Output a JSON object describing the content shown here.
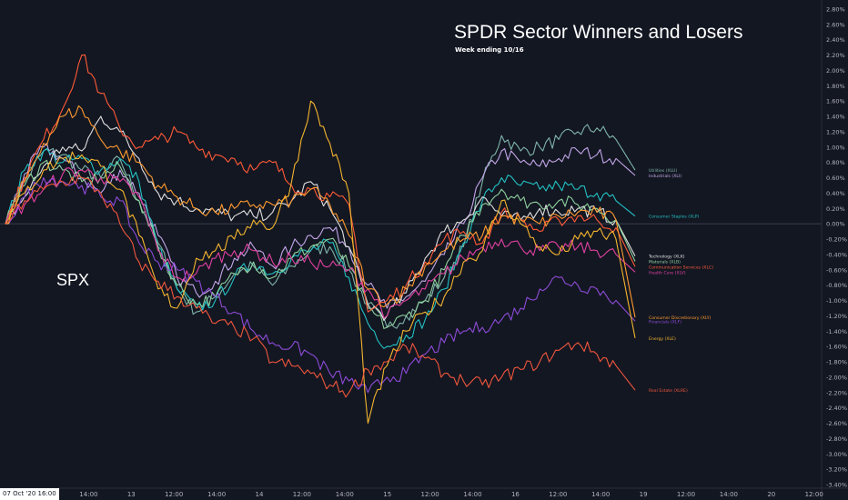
{
  "header": {
    "title": "SPDR Sector Winners and Losers",
    "subtitle": "Week ending 10/16",
    "index_label": "SPX",
    "crosshair_date": "07 Oct '20   16:00"
  },
  "colors": {
    "background": "#131722",
    "axis_text": "#b2b5be",
    "grid_zero": "#4a4e5a"
  },
  "chart_data": {
    "type": "line",
    "ylabel_unit": "%",
    "ylim": [
      -3.4,
      3.0
    ],
    "y_ticks": [
      "2.80%",
      "2.60%",
      "2.40%",
      "2.20%",
      "2.00%",
      "1.80%",
      "1.60%",
      "1.40%",
      "1.20%",
      "1.00%",
      "0.80%",
      "0.60%",
      "0.40%",
      "0.20%",
      "0.00%",
      "-0.20%",
      "-0.40%",
      "-0.60%",
      "-0.80%",
      "-1.00%",
      "-1.20%",
      "-1.40%",
      "-1.60%",
      "-1.80%",
      "-2.00%",
      "-2.20%",
      "-2.40%",
      "-2.60%",
      "-2.80%",
      "-3.00%",
      "-3.20%",
      "-3.40%"
    ],
    "x_ticks": [
      "00",
      "14:00",
      "13",
      "12:00",
      "14:00",
      "14",
      "12:00",
      "14:00",
      "15",
      "12:00",
      "14:00",
      "16",
      "12:00",
      "14:00",
      "19",
      "12:00",
      "14:00",
      "20",
      "12:00"
    ],
    "series": [
      {
        "name": "Utilities (XLU)",
        "color": "#7fb4a8",
        "end": 0.7,
        "values": [
          0.0,
          0.55,
          0.95,
          0.9,
          0.7,
          0.6,
          0.85,
          0.3,
          -0.25,
          -0.85,
          -1.15,
          -0.95,
          -0.65,
          -0.55,
          -0.8,
          -0.55,
          -0.35,
          -0.3,
          -0.6,
          -1.05,
          -1.35,
          -1.2,
          -1.0,
          -0.7,
          -0.3,
          0.55,
          1.15,
          0.95,
          1.0,
          1.1,
          1.2,
          1.25,
          1.1,
          0.7
        ]
      },
      {
        "name": "Industrials (XLI)",
        "color": "#c3a6e8",
        "end": 0.63,
        "values": [
          0.0,
          0.65,
          1.0,
          0.85,
          0.6,
          0.4,
          0.7,
          0.4,
          -0.15,
          -0.7,
          -0.9,
          -0.75,
          -0.45,
          -0.3,
          -0.55,
          -0.3,
          -0.15,
          -0.05,
          -0.3,
          -0.8,
          -1.1,
          -0.95,
          -0.75,
          -0.4,
          0.0,
          0.6,
          0.95,
          0.8,
          0.75,
          0.85,
          0.95,
          0.9,
          0.85,
          0.63
        ]
      },
      {
        "name": "Consumer Staples (XLP)",
        "color": "#22c1c3",
        "end": 0.1,
        "values": [
          0.0,
          0.7,
          0.95,
          0.8,
          0.85,
          0.7,
          0.85,
          0.55,
          -0.3,
          -0.85,
          -1.1,
          -1.0,
          -0.7,
          -0.5,
          -0.65,
          -0.45,
          -0.35,
          -0.25,
          -0.7,
          -1.3,
          -1.6,
          -1.45,
          -1.25,
          -0.85,
          -0.25,
          0.3,
          0.6,
          0.5,
          0.45,
          0.5,
          0.45,
          0.4,
          0.3,
          0.1
        ]
      },
      {
        "name": "Technology (XLK)",
        "color": "#e0e0e0",
        "end": -0.42,
        "values": [
          0.0,
          0.35,
          0.75,
          1.0,
          0.95,
          1.4,
          1.2,
          0.85,
          0.4,
          0.3,
          0.2,
          0.15,
          0.1,
          0.1,
          0.15,
          0.3,
          0.55,
          0.2,
          -0.3,
          -1.05,
          -1.2,
          -0.9,
          -0.45,
          -0.1,
          0.05,
          0.35,
          0.1,
          0.05,
          0.2,
          0.15,
          0.2,
          0.15,
          0.05,
          -0.42
        ]
      },
      {
        "name": "Materials (XLB)",
        "color": "#8fd19e",
        "end": -0.49,
        "values": [
          0.0,
          0.5,
          0.8,
          0.7,
          0.55,
          0.6,
          0.75,
          0.3,
          -0.3,
          -0.8,
          -1.05,
          -0.95,
          -0.65,
          -0.5,
          -0.7,
          -0.45,
          -0.3,
          -0.2,
          -0.55,
          -1.1,
          -1.35,
          -1.2,
          -1.0,
          -0.6,
          -0.15,
          0.25,
          0.45,
          0.3,
          0.25,
          0.3,
          0.25,
          0.2,
          0.05,
          -0.49
        ]
      },
      {
        "name": "Communication Services (XLC)",
        "color": "#ff5a36",
        "end": -0.56,
        "values": [
          0.0,
          0.6,
          1.1,
          1.5,
          2.2,
          1.7,
          1.25,
          1.0,
          1.1,
          1.2,
          1.0,
          0.9,
          0.85,
          0.7,
          0.8,
          0.5,
          0.45,
          0.35,
          0.25,
          -1.15,
          -1.0,
          -0.8,
          -0.5,
          -0.2,
          -0.1,
          -0.25,
          0.15,
          0.05,
          -0.1,
          0.05,
          0.1,
          0.05,
          -0.05,
          -0.56
        ]
      },
      {
        "name": "Health Care (XLV)",
        "color": "#e040a0",
        "end": -0.63,
        "values": [
          0.0,
          0.25,
          0.45,
          0.65,
          0.7,
          0.6,
          0.55,
          0.35,
          -0.35,
          -0.7,
          -0.65,
          -0.45,
          -0.35,
          -0.35,
          -0.5,
          -0.45,
          -0.5,
          -0.55,
          -0.6,
          -0.85,
          -1.2,
          -1.0,
          -0.85,
          -0.65,
          -0.45,
          -0.3,
          -0.2,
          -0.3,
          -0.35,
          -0.3,
          -0.3,
          -0.35,
          -0.4,
          -0.63
        ]
      },
      {
        "name": "Consumer Discretionary (XLY)",
        "color": "#ff9a2e",
        "end": -1.22,
        "values": [
          0.0,
          0.55,
          1.05,
          1.4,
          1.5,
          1.1,
          0.95,
          0.8,
          0.5,
          0.35,
          0.2,
          0.15,
          0.2,
          0.25,
          0.25,
          0.3,
          0.45,
          0.25,
          -0.15,
          -0.85,
          -1.05,
          -0.85,
          -0.55,
          -0.35,
          -0.2,
          -0.15,
          0.1,
          0.05,
          0.0,
          0.1,
          0.15,
          0.15,
          0.05,
          -1.22
        ]
      },
      {
        "name": "Financials (XLF)",
        "color": "#8e4bd8",
        "end": -1.27,
        "values": [
          0.0,
          0.35,
          0.6,
          0.55,
          0.5,
          0.35,
          0.3,
          -0.25,
          -0.5,
          -0.6,
          -0.75,
          -0.95,
          -1.15,
          -1.4,
          -1.55,
          -1.6,
          -1.7,
          -1.95,
          -2.05,
          -2.2,
          -2.0,
          -1.95,
          -1.7,
          -1.55,
          -1.4,
          -1.35,
          -1.25,
          -1.1,
          -0.85,
          -0.7,
          -0.8,
          -0.85,
          -1.0,
          -1.27
        ]
      },
      {
        "name": "Energy (XLE)",
        "color": "#f5b52e",
        "end": -1.49,
        "values": [
          0.0,
          0.4,
          0.7,
          0.85,
          0.9,
          0.75,
          0.45,
          -0.15,
          -0.85,
          -1.1,
          -0.45,
          -0.35,
          -0.2,
          0.05,
          -0.05,
          0.55,
          1.6,
          1.05,
          0.4,
          -2.6,
          -1.85,
          -1.4,
          -1.15,
          -0.95,
          -0.5,
          -0.35,
          0.3,
          0.0,
          -0.3,
          -0.4,
          -0.2,
          -0.1,
          -0.2,
          -1.49
        ]
      },
      {
        "name": "Real Estate (XLRE)",
        "color": "#f0563c",
        "end": -2.17,
        "values": [
          0.0,
          0.3,
          0.45,
          0.55,
          0.6,
          0.4,
          0.0,
          -0.5,
          -0.75,
          -0.95,
          -1.1,
          -1.3,
          -1.35,
          -1.5,
          -1.8,
          -1.85,
          -1.95,
          -2.1,
          -2.2,
          -1.9,
          -1.8,
          -1.6,
          -1.75,
          -1.95,
          -2.05,
          -2.1,
          -2.0,
          -1.9,
          -1.8,
          -1.65,
          -1.55,
          -1.7,
          -1.85,
          -2.17
        ]
      }
    ]
  }
}
